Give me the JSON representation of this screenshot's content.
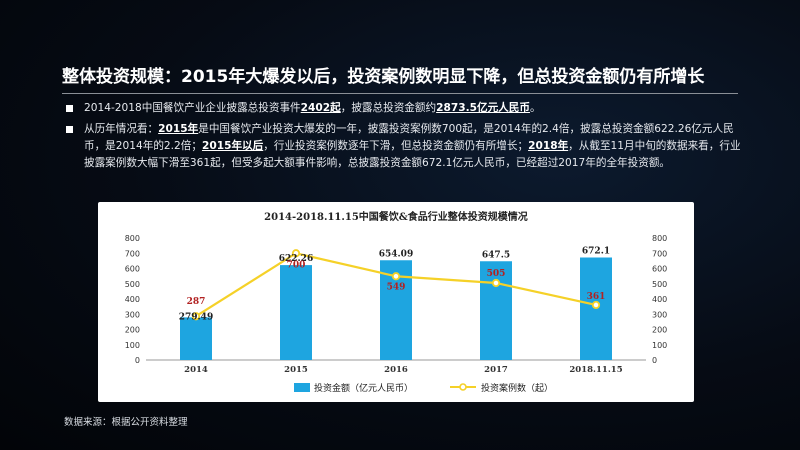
{
  "headline": "整体投资规模：2015年大爆发以后，投资案例数明显下降，但总投资金额仍有所增长",
  "bullet1": {
    "t1": "2014-2018中国餐饮产业企业披露总投资事件",
    "b1": "2402起",
    "t2": "，披露总投资金额约",
    "b2": "2873.5亿元人民币",
    "t3": "。"
  },
  "bullet2": {
    "t1": "从历年情况看：",
    "b1": "2015年",
    "t2": "是中国餐饮产业投资大爆发的一年，披露投资案例数700起，是2014年的2.4倍，披露总投资金额622.26亿元人民币，是2014年的2.2倍；",
    "b2": "2015年以后",
    "t3": "，行业投资案例数逐年下滑，但总投资金额仍有所增长；",
    "b3": "2018年",
    "t4": "，从截至11月中旬的数据来看，行业披露案例数大幅下滑至361起，但受多起大额事件影响，总披露投资金额672.1亿元人民币，已经超过2017年的全年投资额。"
  },
  "source": "数据来源：根据公开资料整理",
  "chart_data": {
    "type": "bar+line",
    "title": "2014-2018.11.15中国餐饮&食品行业整体投资规模情况",
    "categories": [
      "2014",
      "2015",
      "2016",
      "2017",
      "2018.11.15"
    ],
    "series": [
      {
        "name": "投资金额（亿元人民币）",
        "type": "bar",
        "axis": "left",
        "values": [
          279.49,
          622.26,
          654.09,
          647.5,
          672.1
        ],
        "labels": [
          "279.49",
          "622.26",
          "654.09",
          "647.5",
          "672.1"
        ]
      },
      {
        "name": "投资案例数（起）",
        "type": "line",
        "axis": "right",
        "values": [
          287,
          700,
          549,
          505,
          361
        ],
        "labels": [
          "287",
          "700",
          "549",
          "505",
          "361"
        ]
      }
    ],
    "ylim_left": [
      0,
      800
    ],
    "ylim_right": [
      0,
      800
    ],
    "yticks_left": [
      "0",
      "100",
      "200",
      "300",
      "400",
      "500",
      "600",
      "700",
      "800"
    ],
    "yticks_right": [
      "0",
      "100",
      "200",
      "300",
      "400",
      "500",
      "600",
      "700",
      "800"
    ],
    "legend_position": "bottom-center",
    "colors": {
      "bar": "#1ea5e0",
      "line": "#f5d128",
      "line_label": "#b22222",
      "bar_label": "#222222"
    }
  }
}
